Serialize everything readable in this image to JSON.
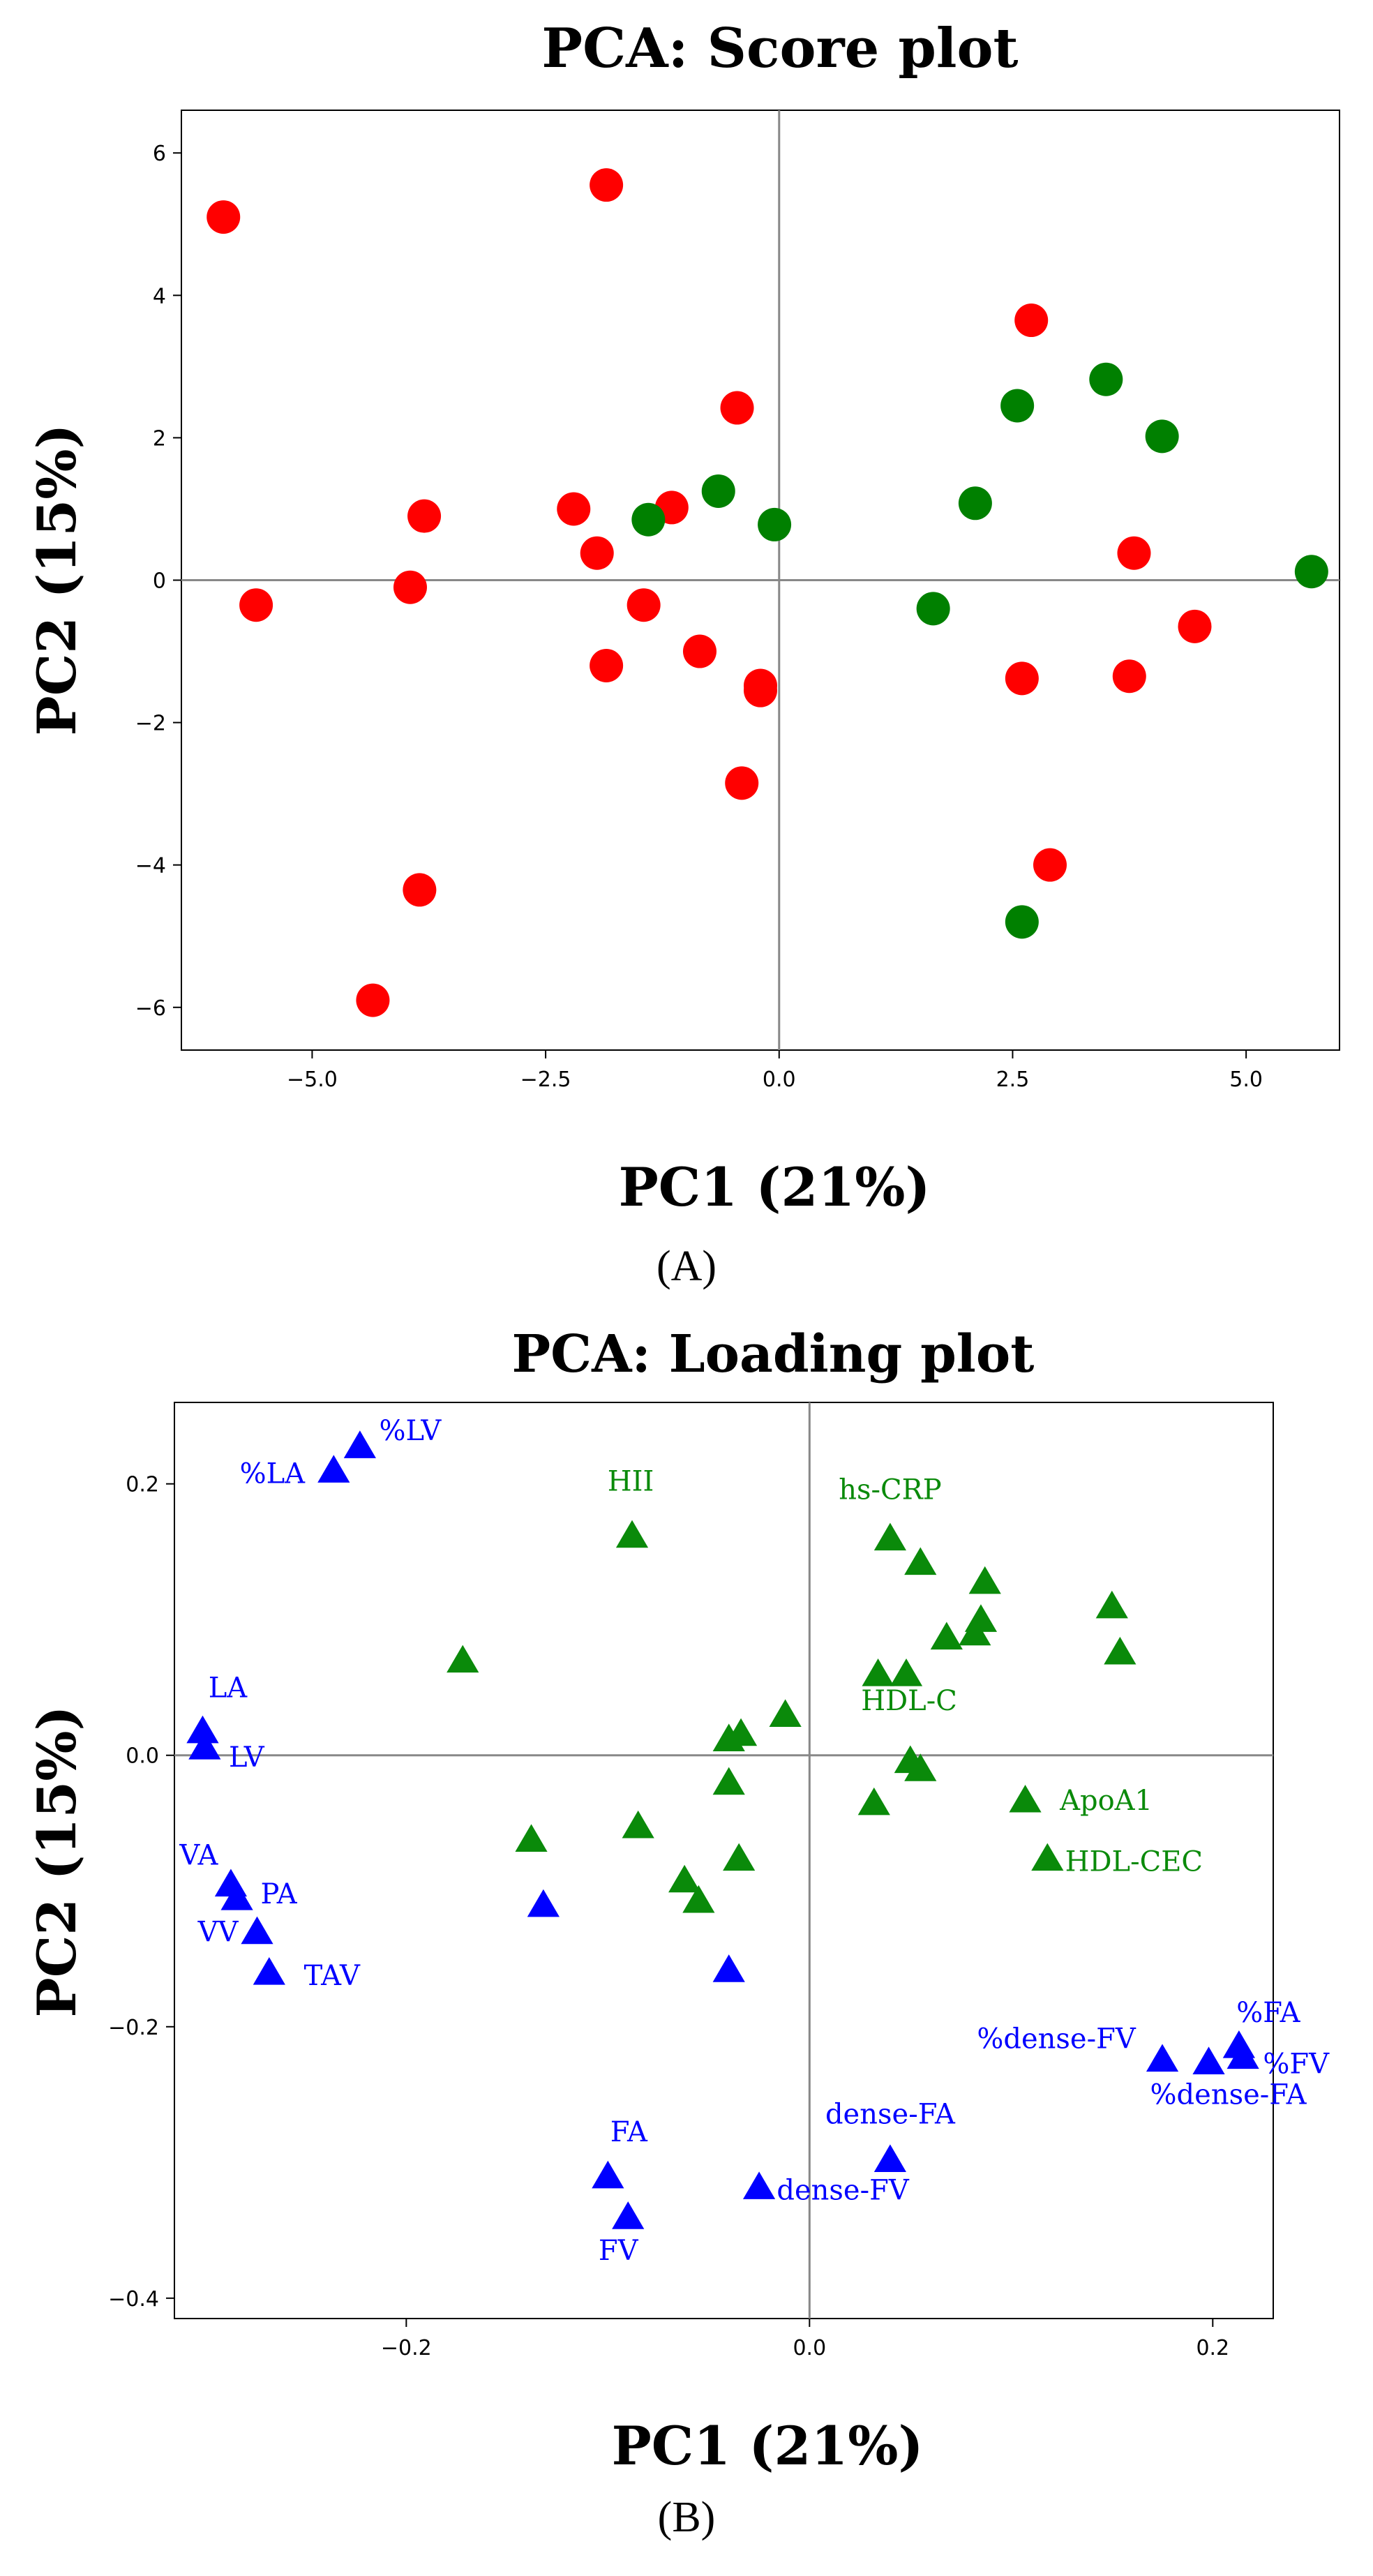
{
  "panels": [
    "(A)",
    "(B)"
  ],
  "chart_data": [
    {
      "type": "scatter",
      "title": "PCA: Score plot",
      "xlabel": "PC1 (21%)",
      "ylabel": "PC2 (15%)",
      "xlim": [
        -6.4,
        6.0
      ],
      "ylim": [
        -6.6,
        6.6
      ],
      "xticks": [
        -5.0,
        -2.5,
        0.0,
        2.5,
        5.0
      ],
      "xtick_labels": [
        "−5.0",
        "−2.5",
        "0.0",
        "2.5",
        "5.0"
      ],
      "yticks": [
        -6,
        -4,
        -2,
        0,
        2,
        4,
        6
      ],
      "ytick_labels": [
        "−6",
        "−4",
        "−2",
        "0",
        "2",
        "4",
        "6"
      ],
      "reference_lines": {
        "x": 0,
        "y": 0
      },
      "legend": "none",
      "series": [
        {
          "color": "#ff0000",
          "marker": "circle",
          "points": [
            [
              -5.95,
              5.1
            ],
            [
              -5.6,
              -0.35
            ],
            [
              -3.95,
              -0.1
            ],
            [
              -3.8,
              0.9
            ],
            [
              -3.85,
              -4.35
            ],
            [
              -4.35,
              -5.9
            ],
            [
              -1.85,
              5.55
            ],
            [
              -2.2,
              1.0
            ],
            [
              -1.95,
              0.38
            ],
            [
              -1.45,
              -0.35
            ],
            [
              -1.85,
              -1.2
            ],
            [
              -1.15,
              1.02
            ],
            [
              -0.85,
              -1.0
            ],
            [
              -0.45,
              2.42
            ],
            [
              -0.2,
              -1.48
            ],
            [
              -0.2,
              -1.55
            ],
            [
              -0.4,
              -2.85
            ],
            [
              2.7,
              3.65
            ],
            [
              3.8,
              0.38
            ],
            [
              4.45,
              -0.65
            ],
            [
              2.6,
              -1.38
            ],
            [
              3.75,
              -1.35
            ],
            [
              2.9,
              -4.0
            ]
          ]
        },
        {
          "color": "#008000",
          "marker": "circle",
          "points": [
            [
              -1.4,
              0.85
            ],
            [
              -0.65,
              1.25
            ],
            [
              -0.05,
              0.78
            ],
            [
              1.65,
              -0.4
            ],
            [
              2.1,
              1.08
            ],
            [
              2.55,
              2.45
            ],
            [
              3.5,
              2.82
            ],
            [
              4.1,
              2.02
            ],
            [
              5.7,
              0.12
            ],
            [
              2.6,
              -4.8
            ]
          ]
        }
      ]
    },
    {
      "type": "scatter",
      "title": "PCA: Loading plot",
      "xlabel": "PC1 (21%)",
      "ylabel": "PC2 (15%)",
      "xlim": [
        -0.315,
        0.23
      ],
      "ylim": [
        -0.415,
        0.26
      ],
      "xticks": [
        -0.2,
        0.0,
        0.2
      ],
      "xtick_labels": [
        "−0.2",
        "0.0",
        "0.2"
      ],
      "yticks": [
        -0.4,
        -0.2,
        0.0,
        0.2
      ],
      "ytick_labels": [
        "−0.4",
        "−0.2",
        "0.0",
        "0.2"
      ],
      "reference_lines": {
        "x": 0,
        "y": 0
      },
      "legend": "none",
      "series": [
        {
          "color": "#0000ff",
          "marker": "triangle",
          "points": [
            {
              "x": -0.223,
              "y": 0.228,
              "label": "%LV"
            },
            {
              "x": -0.236,
              "y": 0.21,
              "label": "%LA"
            },
            {
              "x": -0.301,
              "y": 0.018,
              "label": "LA"
            },
            {
              "x": -0.3,
              "y": 0.006,
              "label": "LV"
            },
            {
              "x": -0.287,
              "y": -0.095,
              "label": "VA"
            },
            {
              "x": -0.284,
              "y": -0.105,
              "label": "PA"
            },
            {
              "x": -0.274,
              "y": -0.13,
              "label": "VV"
            },
            {
              "x": -0.268,
              "y": -0.16,
              "label": "TAV"
            },
            {
              "x": -0.132,
              "y": -0.11,
              "label": ""
            },
            {
              "x": -0.04,
              "y": -0.158,
              "label": ""
            },
            {
              "x": -0.1,
              "y": -0.31,
              "label": "FA"
            },
            {
              "x": -0.09,
              "y": -0.34,
              "label": "FV"
            },
            {
              "x": -0.025,
              "y": -0.318,
              "label": "dense-FV"
            },
            {
              "x": 0.04,
              "y": -0.298,
              "label": "dense-FA"
            },
            {
              "x": 0.175,
              "y": -0.224,
              "label": "%dense-FV"
            },
            {
              "x": 0.198,
              "y": -0.226,
              "label": "%dense-FA"
            },
            {
              "x": 0.213,
              "y": -0.214,
              "label": "%FA"
            },
            {
              "x": 0.215,
              "y": -0.222,
              "label": "%FV"
            }
          ]
        },
        {
          "color": "#0a8a0a",
          "marker": "triangle",
          "points": [
            {
              "x": -0.088,
              "y": 0.162,
              "label": "HII"
            },
            {
              "x": 0.04,
              "y": 0.16,
              "label": "hs-CRP"
            },
            {
              "x": 0.055,
              "y": 0.142,
              "label": ""
            },
            {
              "x": 0.087,
              "y": 0.128,
              "label": ""
            },
            {
              "x": 0.085,
              "y": 0.1,
              "label": ""
            },
            {
              "x": 0.082,
              "y": 0.09,
              "label": ""
            },
            {
              "x": 0.068,
              "y": 0.087,
              "label": ""
            },
            {
              "x": 0.15,
              "y": 0.11,
              "label": ""
            },
            {
              "x": 0.154,
              "y": 0.076,
              "label": ""
            },
            {
              "x": -0.172,
              "y": 0.07,
              "label": ""
            },
            {
              "x": 0.034,
              "y": 0.06,
              "label": ""
            },
            {
              "x": 0.048,
              "y": 0.06,
              "label": "HDL-C"
            },
            {
              "x": -0.012,
              "y": 0.03,
              "label": ""
            },
            {
              "x": -0.04,
              "y": 0.012,
              "label": ""
            },
            {
              "x": -0.034,
              "y": 0.016,
              "label": ""
            },
            {
              "x": 0.05,
              "y": -0.004,
              "label": ""
            },
            {
              "x": 0.055,
              "y": -0.01,
              "label": ""
            },
            {
              "x": -0.04,
              "y": -0.02,
              "label": ""
            },
            {
              "x": 0.107,
              "y": -0.033,
              "label": "ApoA1"
            },
            {
              "x": 0.118,
              "y": -0.076,
              "label": "HDL-CEC"
            },
            {
              "x": 0.032,
              "y": -0.035,
              "label": ""
            },
            {
              "x": -0.138,
              "y": -0.062,
              "label": ""
            },
            {
              "x": -0.085,
              "y": -0.052,
              "label": ""
            },
            {
              "x": -0.035,
              "y": -0.076,
              "label": ""
            },
            {
              "x": -0.062,
              "y": -0.092,
              "label": ""
            },
            {
              "x": -0.055,
              "y": -0.107,
              "label": ""
            }
          ]
        }
      ]
    }
  ]
}
